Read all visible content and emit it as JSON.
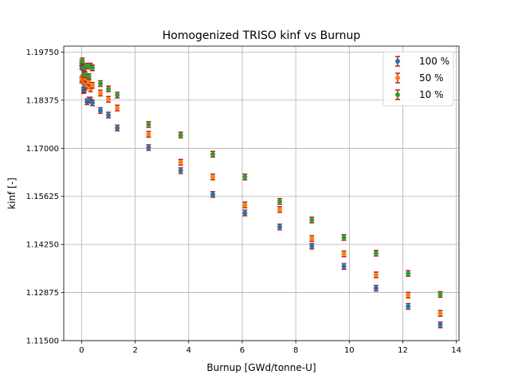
{
  "chart_data": {
    "type": "scatter",
    "title": "Homogenized TRISO kinf vs Burnup",
    "xlabel": "Burnup [GWd/tonne-U]",
    "ylabel": "kinf [-]",
    "xlim": [
      -0.67,
      14.1
    ],
    "ylim": [
      1.115,
      1.1992
    ],
    "xticks": [
      0,
      2,
      4,
      6,
      8,
      10,
      12,
      14
    ],
    "xtick_labels": [
      "0",
      "2",
      "4",
      "6",
      "8",
      "10",
      "12",
      "14"
    ],
    "yticks": [
      1.115,
      1.12875,
      1.1425,
      1.15625,
      1.17,
      1.18375,
      1.1975
    ],
    "ytick_labels": [
      "1.11500",
      "1.12875",
      "1.14250",
      "1.15625",
      "1.17000",
      "1.18375",
      "1.19750"
    ],
    "grid": true,
    "legend_position": "top-right",
    "error_bar_color": "#b22222",
    "series": [
      {
        "name": "100 %",
        "color": "#1f77b4",
        "x": [
          0,
          0.03,
          0.07,
          0.1,
          0.13,
          0.2,
          0.27,
          0.33,
          0.4,
          0.7,
          1.0,
          1.33,
          2.5,
          3.7,
          4.9,
          6.1,
          7.4,
          8.6,
          9.8,
          11.0,
          12.2,
          13.4
        ],
        "y": [
          1.1935,
          1.1932,
          1.1865,
          1.1868,
          1.1875,
          1.1833,
          1.1838,
          1.1838,
          1.183,
          1.1808,
          1.1795,
          1.1758,
          1.1702,
          1.1636,
          1.1568,
          1.1515,
          1.1475,
          1.142,
          1.1362,
          1.13,
          1.1248,
          1.1195
        ],
        "err": [
          0.0008,
          0.0008,
          0.0008,
          0.0008,
          0.0008,
          0.0008,
          0.0008,
          0.0008,
          0.0008,
          0.0008,
          0.0008,
          0.0008,
          0.0008,
          0.0008,
          0.0008,
          0.0008,
          0.0008,
          0.0008,
          0.0008,
          0.0008,
          0.0008,
          0.0008
        ]
      },
      {
        "name": "50 %",
        "color": "#ff7f0e",
        "x": [
          0,
          0.03,
          0.07,
          0.1,
          0.13,
          0.2,
          0.27,
          0.33,
          0.4,
          0.7,
          1.0,
          1.33,
          2.5,
          3.7,
          4.9,
          6.1,
          7.4,
          8.6,
          9.8,
          11.0,
          12.2,
          13.4
        ],
        "y": [
          1.1895,
          1.19,
          1.1895,
          1.189,
          1.19,
          1.188,
          1.189,
          1.187,
          1.188,
          1.1858,
          1.184,
          1.1815,
          1.174,
          1.166,
          1.1618,
          1.1538,
          1.1525,
          1.1442,
          1.1398,
          1.1338,
          1.128,
          1.1228
        ],
        "err": [
          0.0008,
          0.0008,
          0.0008,
          0.0008,
          0.0008,
          0.0008,
          0.0008,
          0.0008,
          0.0008,
          0.0008,
          0.0008,
          0.0008,
          0.0008,
          0.0008,
          0.0008,
          0.0008,
          0.0008,
          0.0008,
          0.0008,
          0.0008,
          0.0008,
          0.0008
        ]
      },
      {
        "name": "10 %",
        "color": "#2ca02c",
        "x": [
          0,
          0.03,
          0.07,
          0.1,
          0.13,
          0.2,
          0.27,
          0.33,
          0.4,
          0.7,
          1.0,
          1.33,
          2.5,
          3.7,
          4.9,
          6.1,
          7.4,
          8.6,
          9.8,
          11.0,
          12.2,
          13.4
        ],
        "y": [
          1.1945,
          1.195,
          1.192,
          1.193,
          1.191,
          1.1935,
          1.1905,
          1.1935,
          1.193,
          1.1885,
          1.187,
          1.1852,
          1.1768,
          1.1738,
          1.1683,
          1.1618,
          1.1548,
          1.1495,
          1.1445,
          1.14,
          1.1342,
          1.1282
        ],
        "err": [
          0.0008,
          0.0008,
          0.0008,
          0.0008,
          0.0008,
          0.0008,
          0.0008,
          0.0008,
          0.0008,
          0.0008,
          0.0008,
          0.0008,
          0.0008,
          0.0008,
          0.0008,
          0.0008,
          0.0008,
          0.0008,
          0.0008,
          0.0008,
          0.0008,
          0.0008
        ]
      }
    ]
  }
}
